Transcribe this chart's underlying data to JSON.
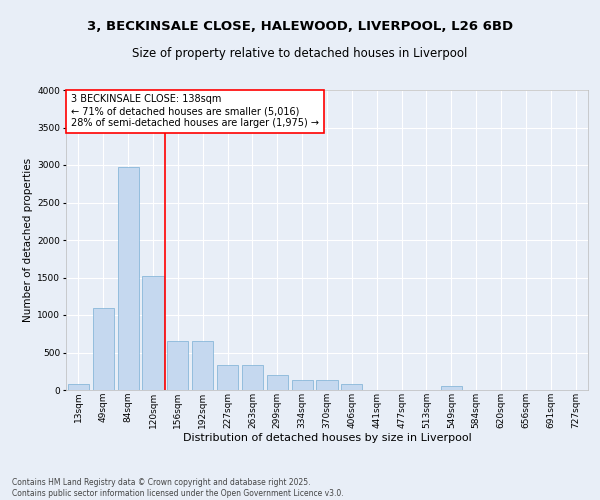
{
  "title_line1": "3, BECKINSALE CLOSE, HALEWOOD, LIVERPOOL, L26 6BD",
  "title_line2": "Size of property relative to detached houses in Liverpool",
  "xlabel": "Distribution of detached houses by size in Liverpool",
  "ylabel": "Number of detached properties",
  "categories": [
    "13sqm",
    "49sqm",
    "84sqm",
    "120sqm",
    "156sqm",
    "192sqm",
    "227sqm",
    "263sqm",
    "299sqm",
    "334sqm",
    "370sqm",
    "406sqm",
    "441sqm",
    "477sqm",
    "513sqm",
    "549sqm",
    "584sqm",
    "620sqm",
    "656sqm",
    "691sqm",
    "727sqm"
  ],
  "values": [
    75,
    1100,
    2975,
    1520,
    650,
    650,
    340,
    340,
    200,
    130,
    130,
    75,
    0,
    0,
    0,
    50,
    0,
    0,
    0,
    0,
    0
  ],
  "bar_color": "#c5d8ef",
  "bar_edge_color": "#7aafd4",
  "vline_x_index": 3.5,
  "vline_color": "red",
  "ylim": [
    0,
    4000
  ],
  "yticks": [
    0,
    500,
    1000,
    1500,
    2000,
    2500,
    3000,
    3500,
    4000
  ],
  "annotation_title": "3 BECKINSALE CLOSE: 138sqm",
  "annotation_line1": "← 71% of detached houses are smaller (5,016)",
  "annotation_line2": "28% of semi-detached houses are larger (1,975) →",
  "annotation_box_color": "#ffffff",
  "annotation_box_edge": "red",
  "footnote_line1": "Contains HM Land Registry data © Crown copyright and database right 2025.",
  "footnote_line2": "Contains public sector information licensed under the Open Government Licence v3.0.",
  "background_color": "#e8eef7",
  "grid_color": "#ffffff",
  "title1_fontsize": 9.5,
  "title2_fontsize": 8.5,
  "xlabel_fontsize": 8,
  "ylabel_fontsize": 7.5,
  "tick_fontsize": 6.5,
  "annotation_fontsize": 7,
  "footnote_fontsize": 5.5
}
